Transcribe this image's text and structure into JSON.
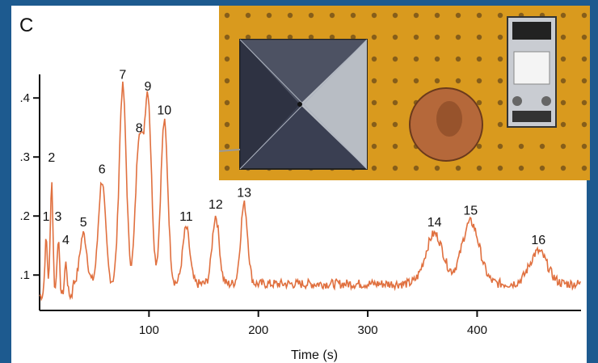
{
  "panel_label": "C",
  "chart_data": {
    "type": "line",
    "title": "",
    "xlabel": "Time (s)",
    "ylabel": "",
    "xlim": [
      0,
      495
    ],
    "ylim": [
      0.04,
      0.44
    ],
    "x_ticks": [
      100,
      200,
      300,
      400
    ],
    "x_tick_labels": [
      "100",
      "200",
      "300",
      "400"
    ],
    "y_ticks": [
      0.1,
      0.2,
      0.3,
      0.4
    ],
    "y_tick_labels": [
      ".1",
      ".2",
      ".3",
      ".4"
    ],
    "grid": false,
    "line_color": "#e0703f",
    "peaks": [
      {
        "label": "1",
        "x": 6,
        "y": 0.18
      },
      {
        "label": "2",
        "x": 11,
        "y": 0.28
      },
      {
        "label": "3",
        "x": 17,
        "y": 0.18
      },
      {
        "label": "4",
        "x": 24,
        "y": 0.14
      },
      {
        "label": "5",
        "x": 40,
        "y": 0.17
      },
      {
        "label": "6",
        "x": 57,
        "y": 0.26
      },
      {
        "label": "7",
        "x": 76,
        "y": 0.42
      },
      {
        "label": "8",
        "x": 91,
        "y": 0.33
      },
      {
        "label": "9",
        "x": 99,
        "y": 0.4
      },
      {
        "label": "10",
        "x": 114,
        "y": 0.36
      },
      {
        "label": "11",
        "x": 134,
        "y": 0.18
      },
      {
        "label": "12",
        "x": 161,
        "y": 0.2
      },
      {
        "label": "13",
        "x": 187,
        "y": 0.22
      },
      {
        "label": "14",
        "x": 361,
        "y": 0.17
      },
      {
        "label": "15",
        "x": 394,
        "y": 0.19
      },
      {
        "label": "16",
        "x": 456,
        "y": 0.14
      }
    ],
    "baseline": 0.085
  },
  "inset_photo": {
    "board_color": "#d99a1e",
    "chip_color": "#3a3f52",
    "coin_color": "#b5683a"
  }
}
